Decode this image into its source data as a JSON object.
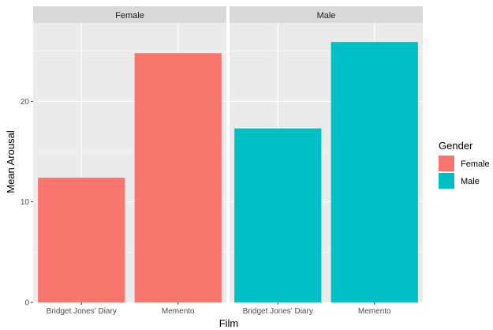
{
  "chart_data": {
    "type": "bar",
    "facet_by": "Gender",
    "xlabel": "Film",
    "ylabel": "Mean Arousal",
    "ylim": [
      0,
      27.8
    ],
    "yticks": [
      0,
      10,
      20
    ],
    "categories": [
      "Bridget Jones' Diary",
      "Memento"
    ],
    "panels": [
      {
        "name": "Female",
        "color": "#F8766D",
        "values": [
          12.4,
          24.8
        ]
      },
      {
        "name": "Male",
        "color": "#00BFC4",
        "values": [
          17.3,
          25.9
        ]
      }
    ],
    "legend": {
      "title": "Gender",
      "position": "right",
      "items": [
        {
          "label": "Female",
          "color": "#F8766D"
        },
        {
          "label": "Male",
          "color": "#00BFC4"
        }
      ]
    },
    "grid": true,
    "panel_background": "#EBEBEB",
    "strip_background": "#D9D9D9"
  }
}
